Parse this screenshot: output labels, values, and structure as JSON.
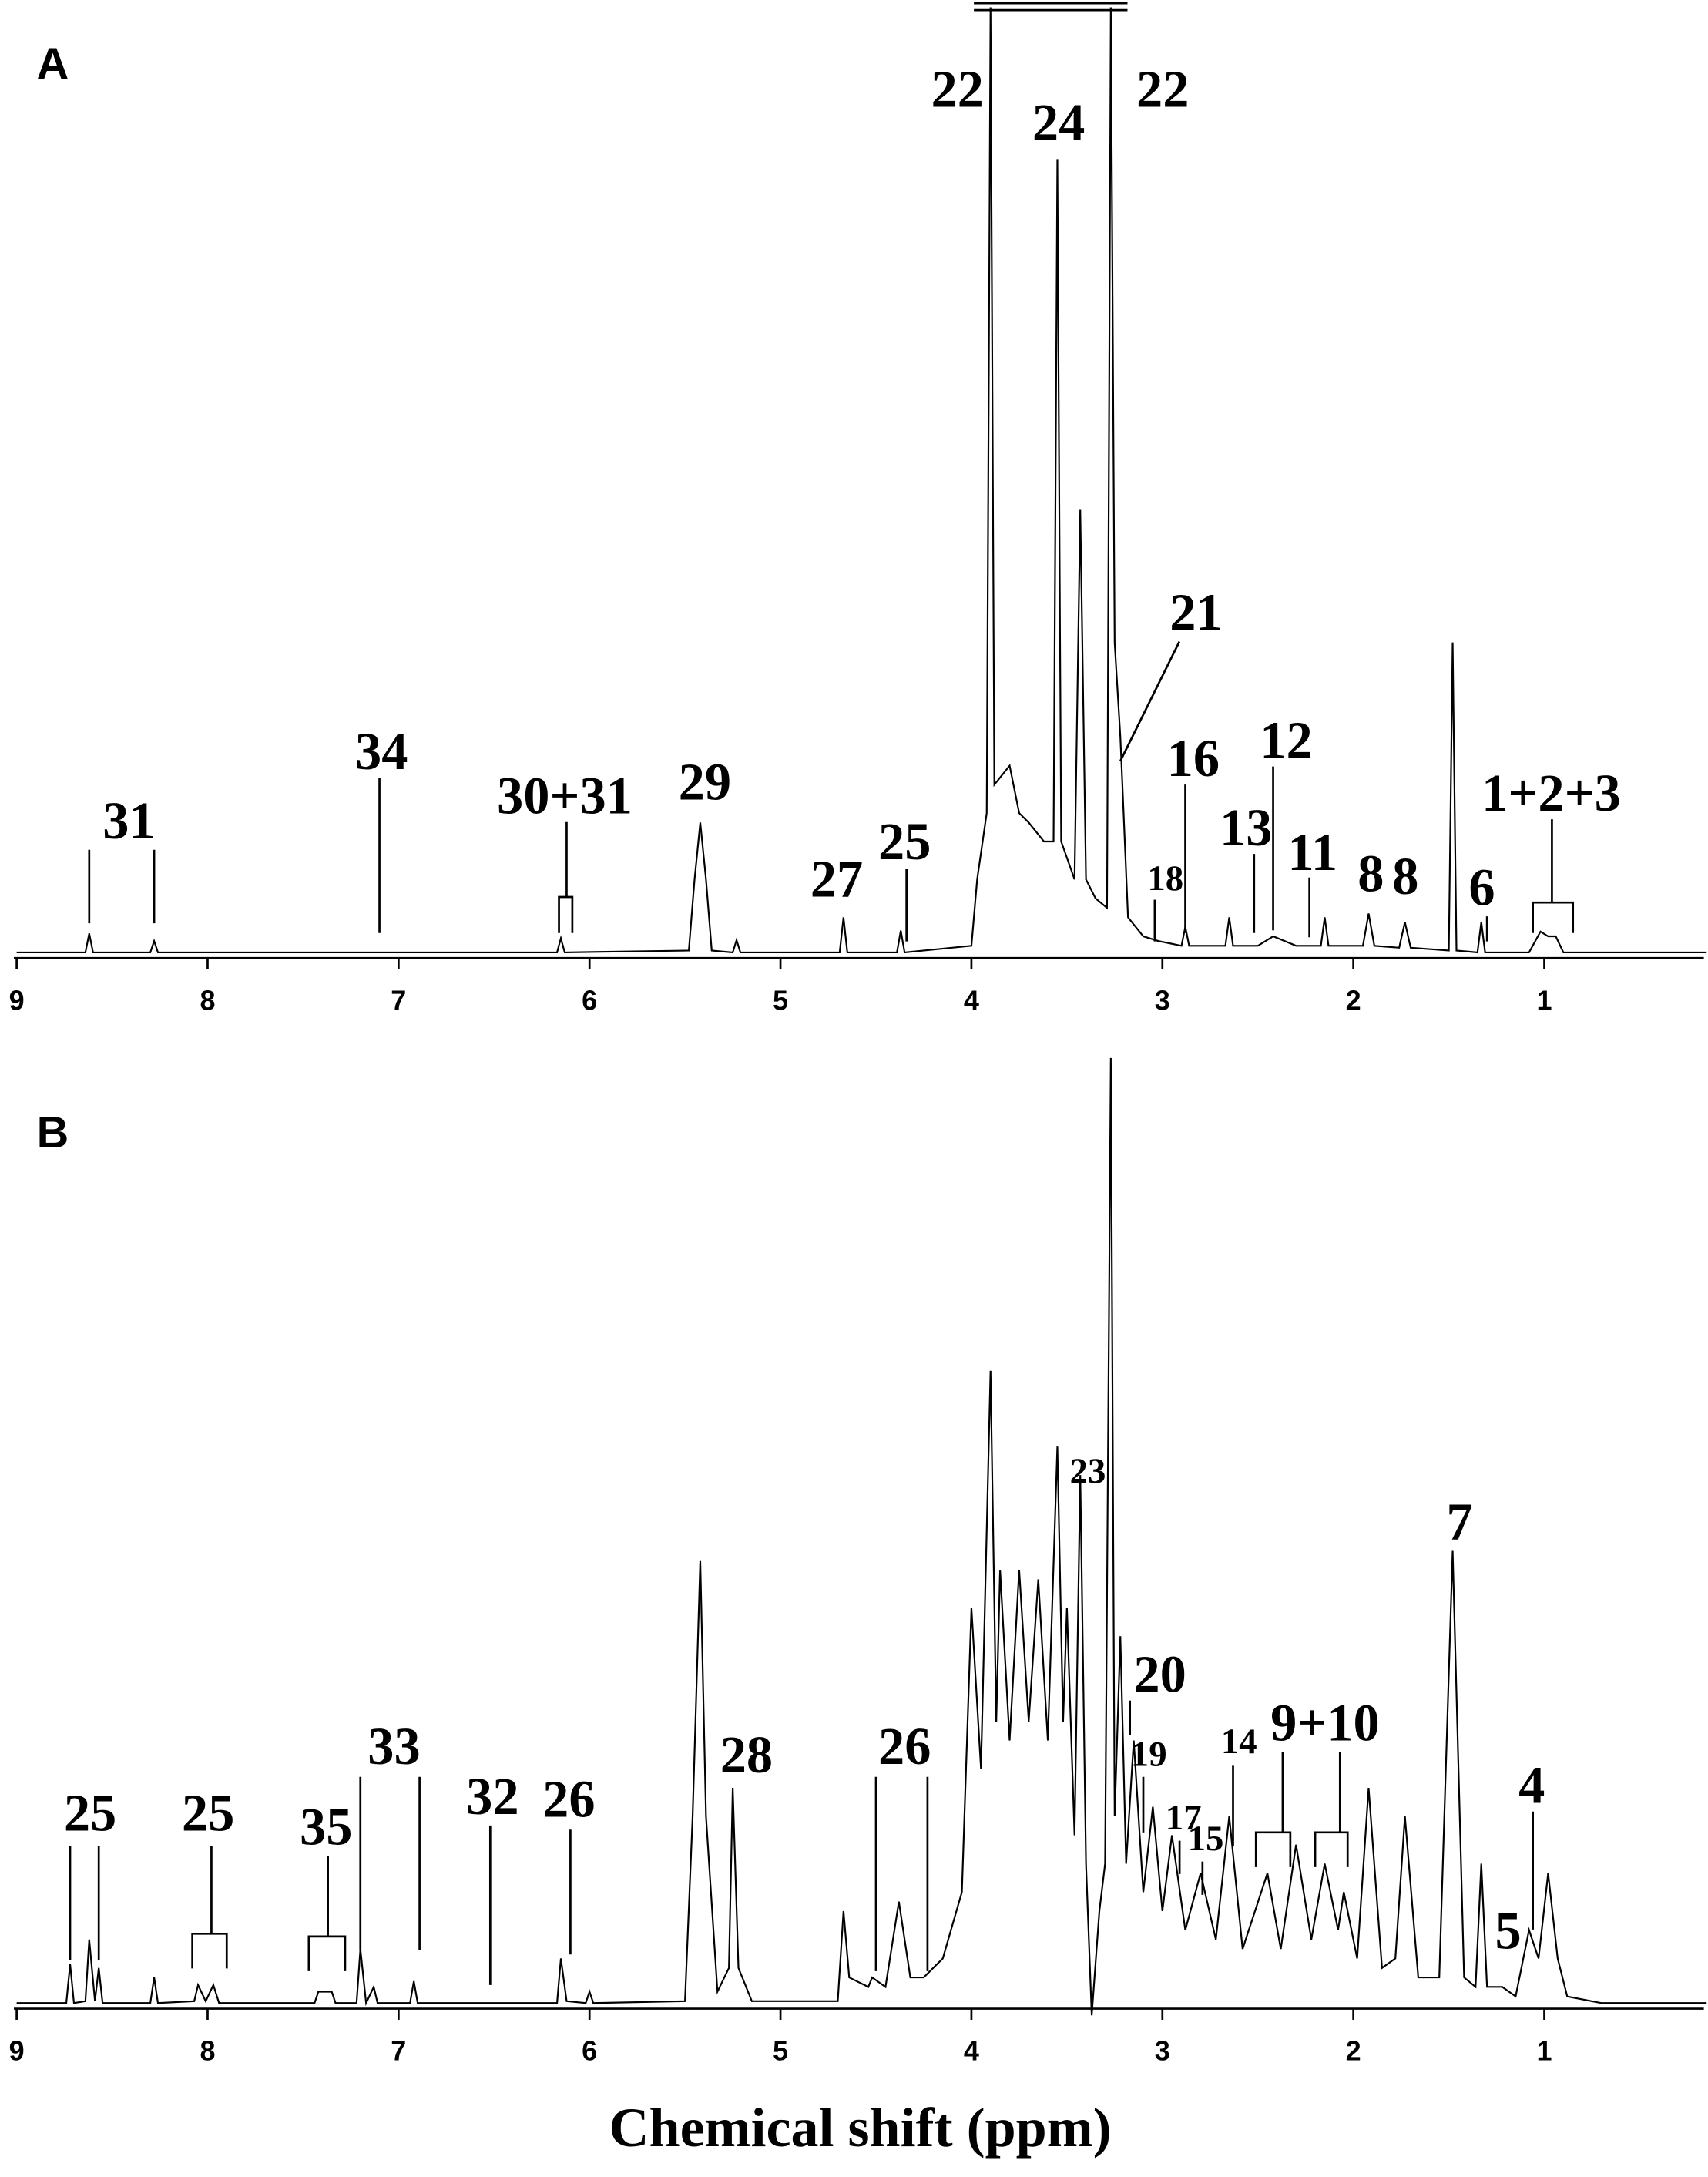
{
  "chart_data": [
    {
      "type": "line",
      "title": "A",
      "color": "#000000",
      "xlim": [
        9.0,
        0.15
      ],
      "ylim": [
        0,
        100
      ],
      "xticks": [
        9,
        8,
        7,
        6,
        5,
        4,
        3,
        2,
        1
      ],
      "x": [
        9.0,
        8.64,
        8.62,
        8.6,
        8.3,
        8.28,
        8.26,
        6.17,
        6.15,
        6.13,
        5.48,
        5.45,
        5.42,
        5.39,
        5.36,
        5.25,
        5.23,
        5.21,
        4.69,
        4.67,
        4.65,
        4.39,
        4.37,
        4.35,
        4.0,
        3.97,
        3.92,
        3.9,
        3.88,
        3.8,
        3.75,
        3.7,
        3.62,
        3.57,
        3.55,
        3.53,
        3.46,
        3.43,
        3.4,
        3.35,
        3.29,
        3.27,
        3.25,
        3.22,
        3.18,
        3.1,
        3.02,
        2.9,
        2.88,
        2.86,
        2.67,
        2.65,
        2.63,
        2.5,
        2.42,
        2.3,
        2.17,
        2.15,
        2.13,
        1.95,
        1.92,
        1.89,
        1.76,
        1.73,
        1.7,
        1.5,
        1.48,
        1.46,
        1.35,
        1.33,
        1.31,
        1.08,
        1.02,
        0.98,
        0.94,
        0.9,
        0.15
      ],
      "values": [
        0.3,
        0.3,
        2.3,
        0.3,
        0.3,
        1.5,
        0.3,
        0.3,
        1.8,
        0.3,
        0.5,
        8,
        14,
        8,
        0.5,
        0.3,
        1.6,
        0.3,
        0.3,
        4,
        0.3,
        0.3,
        2.6,
        0.3,
        1,
        8,
        15,
        100,
        18,
        20,
        15,
        14,
        12,
        12,
        84,
        12,
        8,
        47,
        8,
        6,
        5,
        100,
        33,
        23,
        4,
        2,
        1.5,
        1,
        3,
        1,
        1,
        4,
        1,
        1,
        2,
        1,
        1,
        4,
        1,
        1,
        4.4,
        1,
        0.8,
        3.5,
        0.8,
        0.5,
        33,
        0.5,
        0.3,
        3.5,
        0.3,
        0.3,
        2.5,
        2,
        2,
        0.3,
        0.3
      ],
      "annotations": [
        {
          "text": "22",
          "x": [
            3.9
          ]
        },
        {
          "text": "24",
          "x": [
            3.55
          ]
        },
        {
          "text": "22",
          "x": [
            3.27
          ]
        },
        {
          "text": "21",
          "x": [
            3.22
          ]
        },
        {
          "text": "16",
          "x": [
            2.88
          ]
        },
        {
          "text": "12",
          "x": [
            2.42
          ]
        },
        {
          "text": "13",
          "x": [
            2.52
          ]
        },
        {
          "text": "11",
          "x": [
            2.23
          ]
        },
        {
          "text": "18",
          "x": [
            3.04
          ]
        },
        {
          "text": "8",
          "x": [
            1.92
          ]
        },
        {
          "text": "8",
          "x": [
            1.73
          ]
        },
        {
          "text": "6",
          "x": [
            1.3
          ]
        },
        {
          "text": "1+2+3",
          "x": [
            0.96
          ],
          "ranges": [
            [
              1.06,
              0.85
            ]
          ]
        },
        {
          "text": "34",
          "x": [
            7.1
          ]
        },
        {
          "text": "31",
          "x": [
            8.62,
            8.28
          ]
        },
        {
          "text": "30+31",
          "x": [
            6.12
          ],
          "ranges": [
            [
              6.16,
              6.09
            ]
          ]
        },
        {
          "text": "29",
          "x": [
            5.42
          ]
        },
        {
          "text": "27",
          "x": [
            4.67
          ]
        },
        {
          "text": "25",
          "x": [
            4.34
          ]
        }
      ]
    },
    {
      "type": "line",
      "title": "B",
      "color": "#000000",
      "xlabel": "Chemical shift (ppm)",
      "xlim": [
        9.0,
        0.15
      ],
      "ylim": [
        0,
        100
      ],
      "xticks": [
        9,
        8,
        7,
        6,
        5,
        4,
        3,
        2,
        1
      ],
      "x": [
        9.0,
        8.74,
        8.72,
        8.7,
        8.64,
        8.62,
        8.59,
        8.57,
        8.55,
        8.3,
        8.28,
        8.26,
        8.07,
        8.05,
        8.01,
        7.97,
        7.94,
        7.44,
        7.42,
        7.35,
        7.33,
        7.22,
        7.2,
        7.17,
        7.13,
        7.11,
        6.94,
        6.92,
        6.9,
        6.17,
        6.15,
        6.12,
        6.02,
        6.0,
        5.98,
        5.5,
        5.46,
        5.42,
        5.39,
        5.33,
        5.27,
        5.25,
        5.22,
        5.15,
        4.7,
        4.67,
        4.64,
        4.54,
        4.52,
        4.45,
        4.38,
        4.32,
        4.25,
        4.15,
        4.05,
        4.0,
        3.95,
        3.9,
        3.87,
        3.85,
        3.8,
        3.75,
        3.7,
        3.65,
        3.6,
        3.55,
        3.52,
        3.5,
        3.46,
        3.43,
        3.4,
        3.37,
        3.33,
        3.3,
        3.27,
        3.25,
        3.22,
        3.19,
        3.15,
        3.1,
        3.05,
        3.0,
        2.95,
        2.88,
        2.8,
        2.72,
        2.65,
        2.58,
        2.45,
        2.38,
        2.3,
        2.22,
        2.15,
        2.08,
        2.05,
        1.98,
        1.92,
        1.85,
        1.78,
        1.73,
        1.66,
        1.55,
        1.48,
        1.42,
        1.36,
        1.33,
        1.3,
        1.22,
        1.15,
        1.08,
        1.03,
        0.98,
        0.93,
        0.88,
        0.7,
        0.15
      ],
      "values": [
        0.3,
        0.3,
        4.4,
        0.3,
        0.5,
        7,
        0.5,
        4,
        0.3,
        0.3,
        3,
        0.3,
        0.5,
        2.2,
        0.5,
        2.2,
        0.3,
        0.3,
        1.5,
        1.5,
        0.3,
        0.3,
        6,
        0.3,
        2,
        0.3,
        0.3,
        2.6,
        0.3,
        0.3,
        5,
        0.5,
        0.3,
        1.5,
        0.3,
        0.5,
        20,
        47,
        20,
        1.5,
        4,
        23,
        4,
        0.5,
        0.5,
        10,
        3,
        2,
        3,
        2,
        11,
        3,
        3,
        5,
        12,
        42,
        25,
        67,
        30,
        46,
        28,
        46,
        30,
        45,
        28,
        59,
        30,
        42,
        18,
        56,
        15,
        -1,
        10,
        15,
        100,
        20,
        39,
        15,
        28,
        12,
        21,
        10,
        18,
        8,
        14,
        7,
        20,
        6,
        14,
        6,
        17,
        7,
        15,
        8,
        12,
        5,
        23,
        4,
        5,
        20,
        3,
        3,
        48,
        3,
        2,
        15,
        2,
        2,
        1,
        8,
        5,
        14,
        5,
        1,
        0.3,
        0.3
      ],
      "annotations": [
        {
          "text": "25",
          "x": [
            8.72,
            8.57
          ]
        },
        {
          "text": "25",
          "x": [
            7.98
          ],
          "ranges": [
            [
              8.08,
              7.9
            ]
          ]
        },
        {
          "text": "35",
          "x": [
            7.37
          ],
          "ranges": [
            [
              7.47,
              7.28
            ]
          ]
        },
        {
          "text": "33",
          "x": [
            7.2,
            6.89
          ]
        },
        {
          "text": "32",
          "x": [
            6.52
          ]
        },
        {
          "text": "26",
          "x": [
            6.1
          ]
        },
        {
          "text": "28",
          "x": [
            5.27
          ]
        },
        {
          "text": "26",
          "x": [
            4.5,
            4.23
          ]
        },
        {
          "text": "23",
          "x": [
            3.43
          ]
        },
        {
          "text": "20",
          "x": [
            3.17
          ]
        },
        {
          "text": "19",
          "x": [
            3.1
          ]
        },
        {
          "text": "17",
          "x": [
            2.91
          ]
        },
        {
          "text": "15",
          "x": [
            2.79
          ]
        },
        {
          "text": "14",
          "x": [
            2.63
          ]
        },
        {
          "text": "9+10",
          "x": [
            2.37,
            2.07
          ],
          "ranges": [
            [
              2.51,
              2.33
            ],
            [
              2.2,
              2.03
            ]
          ]
        },
        {
          "text": "7",
          "x": [
            1.48
          ]
        },
        {
          "text": "4",
          "x": [
            1.06
          ]
        },
        {
          "text": "5",
          "x": [
            1.2
          ]
        }
      ]
    }
  ]
}
